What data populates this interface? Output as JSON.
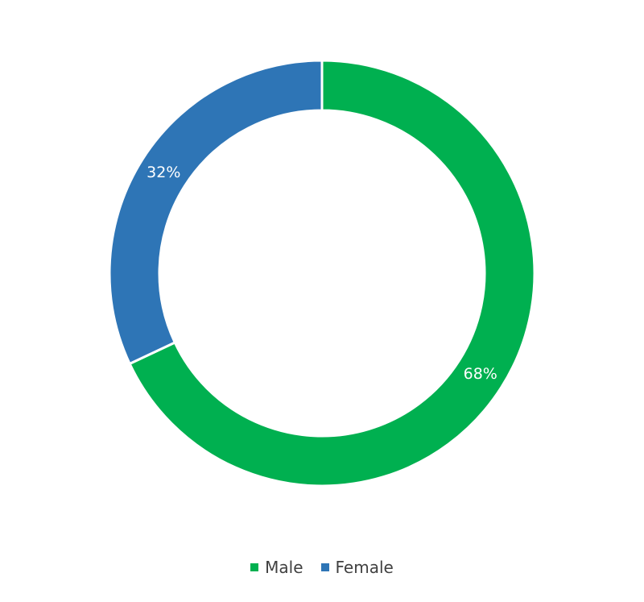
{
  "chart_data": {
    "type": "pie",
    "donut": true,
    "title": "",
    "categories": [
      "Male",
      "Female"
    ],
    "values": [
      68,
      32
    ],
    "data_labels": [
      "68%",
      "32%"
    ],
    "colors": [
      "#00B050",
      "#2E75B6"
    ],
    "legend_position": "bottom",
    "start_angle_deg": 0,
    "direction": "clockwise"
  }
}
